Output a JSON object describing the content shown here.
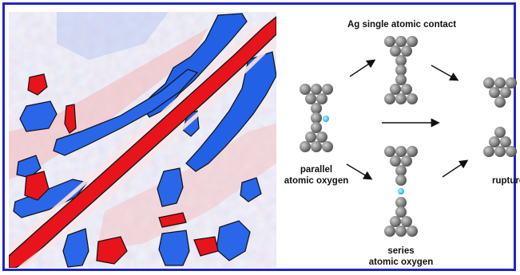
{
  "panels": {
    "heatmap": {
      "name": "correlation-heatmap",
      "colors": {
        "positive": "#e8141b",
        "negative": "#1f5fe0",
        "contour": "#111111"
      }
    },
    "diagram": {
      "title": "Ag single atomic contact",
      "left_label_line1": "parallel",
      "left_label_line2": "atomic oxygen",
      "bottom_label_line1": "series",
      "bottom_label_line2": "atomic oxygen",
      "right_label": "rupture",
      "colors": {
        "atom": "#8c8c8c",
        "oxygen": "#45c8f2",
        "arrow": "#111111"
      }
    }
  },
  "frame": {
    "border_color": "#1f24c8"
  }
}
